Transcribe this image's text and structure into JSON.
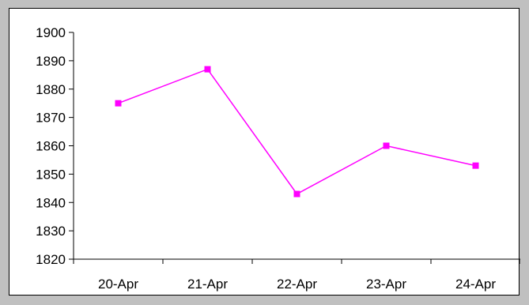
{
  "chart_data": {
    "type": "line",
    "title": "",
    "xlabel": "",
    "ylabel": "",
    "categories": [
      "20-Apr",
      "21-Apr",
      "22-Apr",
      "23-Apr",
      "24-Apr"
    ],
    "series": [
      {
        "values": [
          1875,
          1887,
          1843,
          1860,
          1853
        ],
        "color": "#ff00ff",
        "marker": "square"
      }
    ],
    "ylim": [
      1820,
      1900
    ],
    "yticks": [
      1820,
      1830,
      1840,
      1850,
      1860,
      1870,
      1880,
      1890,
      1900
    ],
    "grid": false,
    "legend": "none",
    "colors": {
      "background": "#c0c0c0",
      "plot_area": "#ffffff",
      "axis": "#000000"
    }
  }
}
